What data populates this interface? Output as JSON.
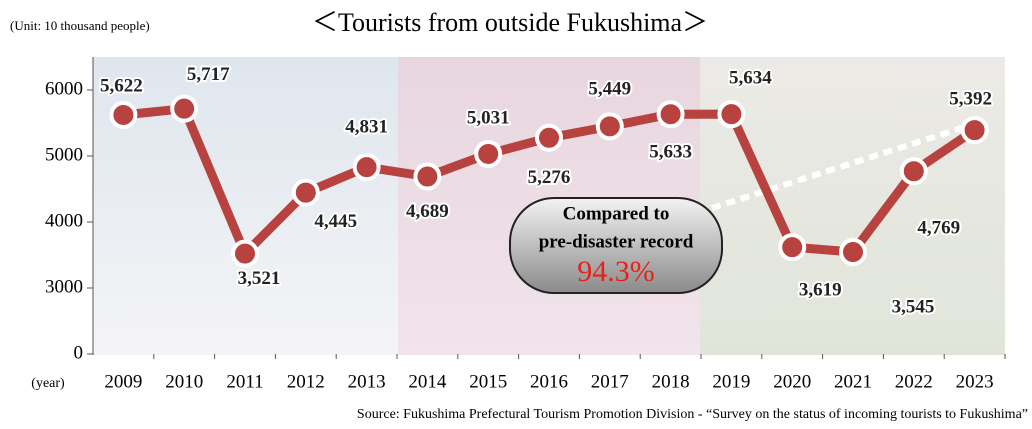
{
  "chart_data": {
    "type": "line",
    "title": "＜Tourists from outside Fukushima＞",
    "unit_label": "(Unit: 10 thousand people)",
    "x_label": "(year)",
    "source": "Source: Fukushima Prefectural Tourism Promotion Division - “Survey on the status of incoming tourists to Fukushima”",
    "categories": [
      "2009",
      "2010",
      "2011",
      "2012",
      "2013",
      "2014",
      "2015",
      "2016",
      "2017",
      "2018",
      "2019",
      "2020",
      "2021",
      "2022",
      "2023"
    ],
    "series": [
      {
        "name": "Tourists from outside Fukushima",
        "color": "#b8423f",
        "values": [
          5622,
          5717,
          3521,
          4445,
          4831,
          4689,
          5031,
          5276,
          5449,
          5633,
          5634,
          3619,
          3545,
          4769,
          5392
        ],
        "value_labels": [
          "5,622",
          "5,717",
          "3,521",
          "4,445",
          "4,831",
          "4,689",
          "5,031",
          "5,276",
          "5,449",
          "5,633",
          "5,634",
          "3,619",
          "3,545",
          "4,769",
          "5,392"
        ]
      }
    ],
    "ylim": [
      0,
      6500
    ],
    "yticks": [
      0,
      3000,
      4000,
      5000,
      6000
    ],
    "annotation": {
      "lines": [
        "Compared to",
        "pre-disaster record"
      ],
      "highlight": "94.3%",
      "highlight_color": "#e8201a"
    }
  }
}
